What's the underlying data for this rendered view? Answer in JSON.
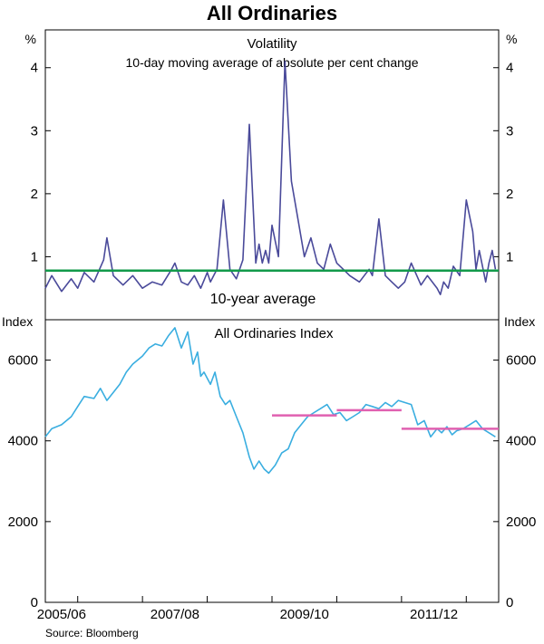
{
  "title": "All Ordinaries",
  "source": "Source: Bloomberg",
  "colors": {
    "volatility_line": "#4a4a9a",
    "average_line": "#129a4a",
    "index_line": "#3aaee0",
    "period_average_line": "#e060b0",
    "axis": "#000000"
  },
  "chart_data": [
    {
      "type": "line",
      "title": "Volatility",
      "subtitle": "10-day moving average of absolute per cent change",
      "ylabel_left": "%",
      "ylabel_right": "%",
      "ylim": [
        0,
        4.6
      ],
      "yticks": [
        1,
        2,
        3,
        4
      ],
      "tick_labels": [
        "1",
        "2",
        "3",
        "4"
      ],
      "annotation": "10-year average",
      "average": 0.78,
      "series": [
        {
          "name": "Volatility",
          "x": [
            2005.5,
            2005.6,
            2005.75,
            2005.9,
            2006.0,
            2006.1,
            2006.25,
            2006.4,
            2006.45,
            2006.55,
            2006.7,
            2006.85,
            2007.0,
            2007.15,
            2007.3,
            2007.45,
            2007.5,
            2007.6,
            2007.7,
            2007.8,
            2007.9,
            2008.0,
            2008.05,
            2008.15,
            2008.25,
            2008.35,
            2008.45,
            2008.55,
            2008.65,
            2008.75,
            2008.8,
            2008.85,
            2008.9,
            2008.95,
            2009.0,
            2009.1,
            2009.2,
            2009.3,
            2009.4,
            2009.5,
            2009.6,
            2009.7,
            2009.8,
            2009.9,
            2010.0,
            2010.1,
            2010.2,
            2010.35,
            2010.5,
            2010.55,
            2010.65,
            2010.75,
            2010.85,
            2010.95,
            2011.05,
            2011.15,
            2011.3,
            2011.4,
            2011.55,
            2011.6,
            2011.65,
            2011.72,
            2011.8,
            2011.9,
            2012.0,
            2012.1,
            2012.15,
            2012.2,
            2012.3,
            2012.35,
            2012.4,
            2012.45
          ],
          "values": [
            0.5,
            0.7,
            0.45,
            0.65,
            0.5,
            0.75,
            0.6,
            0.95,
            1.3,
            0.7,
            0.55,
            0.7,
            0.5,
            0.6,
            0.55,
            0.8,
            0.9,
            0.6,
            0.55,
            0.7,
            0.5,
            0.75,
            0.6,
            0.8,
            1.9,
            0.8,
            0.65,
            0.95,
            3.1,
            0.9,
            1.2,
            0.9,
            1.1,
            0.9,
            1.5,
            1.0,
            4.1,
            2.2,
            1.6,
            1.0,
            1.3,
            0.9,
            0.8,
            1.2,
            0.9,
            0.8,
            0.7,
            0.6,
            0.8,
            0.7,
            1.6,
            0.7,
            0.6,
            0.5,
            0.6,
            0.9,
            0.55,
            0.7,
            0.5,
            0.4,
            0.6,
            0.5,
            0.85,
            0.7,
            1.9,
            1.4,
            0.8,
            1.1,
            0.6,
            0.9,
            1.1,
            0.8
          ]
        }
      ]
    },
    {
      "type": "line",
      "title": "All Ordinaries Index",
      "ylabel_left": "Index",
      "ylabel_right": "Index",
      "ylim": [
        0,
        7000
      ],
      "yticks": [
        0,
        2000,
        4000,
        6000
      ],
      "tick_labels": [
        "0",
        "2000",
        "4000",
        "6000"
      ],
      "x_category_labels": [
        "2005/06",
        "2007/08",
        "2009/10",
        "2011/12"
      ],
      "x_range": [
        2005.5,
        2012.5
      ],
      "series": [
        {
          "name": "All Ordinaries Index",
          "x": [
            2005.5,
            2005.6,
            2005.75,
            2005.9,
            2006.0,
            2006.1,
            2006.25,
            2006.35,
            2006.45,
            2006.55,
            2006.65,
            2006.75,
            2006.85,
            2007.0,
            2007.1,
            2007.2,
            2007.3,
            2007.4,
            2007.5,
            2007.6,
            2007.7,
            2007.78,
            2007.85,
            2007.9,
            2007.95,
            2008.05,
            2008.12,
            2008.2,
            2008.28,
            2008.35,
            2008.45,
            2008.55,
            2008.65,
            2008.72,
            2008.8,
            2008.88,
            2008.95,
            2009.05,
            2009.15,
            2009.25,
            2009.35,
            2009.45,
            2009.55,
            2009.65,
            2009.75,
            2009.85,
            2009.95,
            2010.05,
            2010.15,
            2010.25,
            2010.35,
            2010.45,
            2010.55,
            2010.65,
            2010.75,
            2010.85,
            2010.95,
            2011.05,
            2011.15,
            2011.25,
            2011.35,
            2011.45,
            2011.55,
            2011.62,
            2011.7,
            2011.78,
            2011.85,
            2011.95,
            2012.05,
            2012.15,
            2012.25,
            2012.35,
            2012.45
          ],
          "values": [
            4100,
            4300,
            4400,
            4600,
            4850,
            5100,
            5050,
            5300,
            5000,
            5200,
            5400,
            5700,
            5900,
            6100,
            6300,
            6400,
            6350,
            6600,
            6800,
            6300,
            6700,
            5900,
            6200,
            5600,
            5700,
            5400,
            5700,
            5100,
            4900,
            5000,
            4600,
            4200,
            3600,
            3300,
            3500,
            3300,
            3200,
            3400,
            3700,
            3800,
            4200,
            4400,
            4600,
            4700,
            4800,
            4900,
            4650,
            4700,
            4500,
            4600,
            4700,
            4900,
            4850,
            4800,
            4950,
            4850,
            5000,
            4950,
            4900,
            4400,
            4500,
            4100,
            4300,
            4200,
            4350,
            4150,
            4250,
            4300,
            4400,
            4500,
            4300,
            4200,
            4100
          ]
        },
        {
          "name": "Period average 2009/10",
          "x": [
            2009.0,
            2010.0
          ],
          "values": [
            4630,
            4630
          ]
        },
        {
          "name": "Period average 2010/11",
          "x": [
            2010.0,
            2011.0
          ],
          "values": [
            4760,
            4760
          ]
        },
        {
          "name": "Period average 2011/12",
          "x": [
            2011.0,
            2012.5
          ],
          "values": [
            4300,
            4300
          ]
        }
      ]
    }
  ]
}
